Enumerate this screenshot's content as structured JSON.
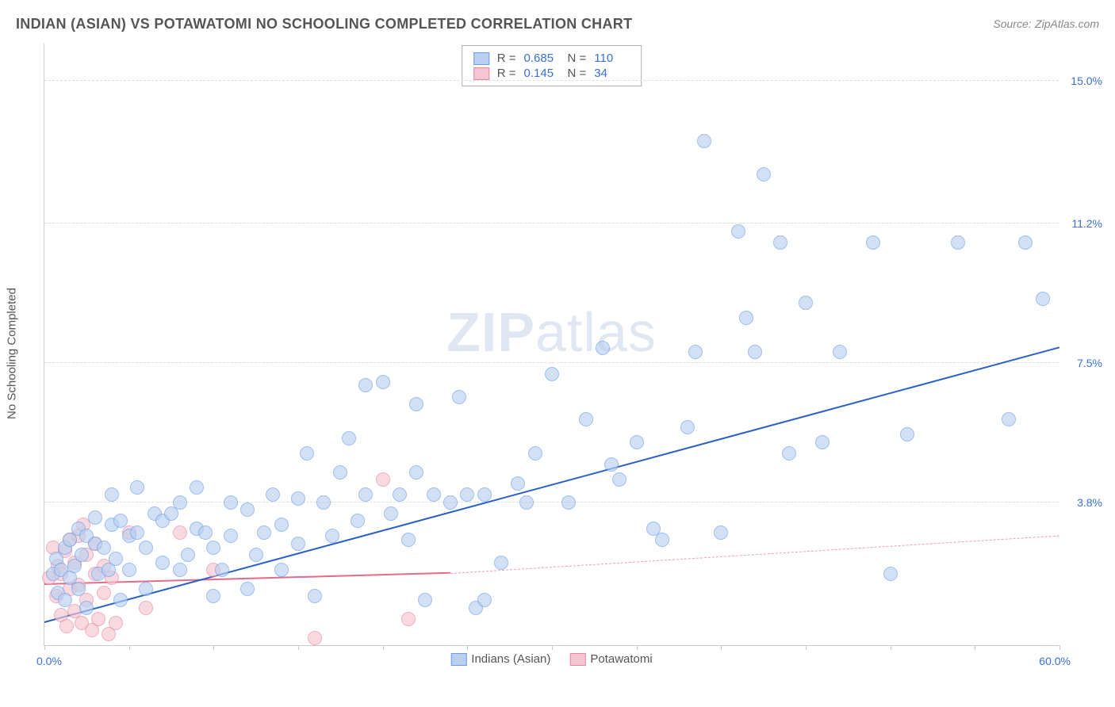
{
  "title": "INDIAN (ASIAN) VS POTAWATOMI NO SCHOOLING COMPLETED CORRELATION CHART",
  "source_label": "Source:",
  "source_value": "ZipAtlas.com",
  "y_axis_label": "No Schooling Completed",
  "watermark_bold": "ZIP",
  "watermark_light": "atlas",
  "chart": {
    "type": "scatter",
    "xlim": [
      0,
      60
    ],
    "ylim": [
      0,
      16
    ],
    "x_min_label": "0.0%",
    "x_max_label": "60.0%",
    "x_tick_step": 5,
    "y_gridlines": [
      3.8,
      7.5,
      11.2,
      15.0
    ],
    "y_tick_labels": [
      "3.8%",
      "7.5%",
      "11.2%",
      "15.0%"
    ],
    "background_color": "#ffffff",
    "grid_color": "#dddddd",
    "axis_color": "#cccccc",
    "tick_label_color": "#3a6fd8",
    "marker_radius": 9,
    "marker_stroke_width": 1
  },
  "series": {
    "blue": {
      "name": "Indians (Asian)",
      "R": "0.685",
      "N": "110",
      "fill": "#b9d0f0",
      "stroke": "#6a9de8",
      "fill_opacity": 0.65,
      "trend": {
        "x1": 0,
        "y1": 0.6,
        "x2": 60,
        "y2": 7.9,
        "color": "#2a5fc8",
        "width": 2.5,
        "dash": false
      },
      "points": [
        [
          0.5,
          1.9
        ],
        [
          0.7,
          2.3
        ],
        [
          0.8,
          1.4
        ],
        [
          1.0,
          2.0
        ],
        [
          1.2,
          2.6
        ],
        [
          1.2,
          1.2
        ],
        [
          1.5,
          2.8
        ],
        [
          1.5,
          1.8
        ],
        [
          1.8,
          2.1
        ],
        [
          2.0,
          3.1
        ],
        [
          2.0,
          1.5
        ],
        [
          2.2,
          2.4
        ],
        [
          2.5,
          2.9
        ],
        [
          2.5,
          1.0
        ],
        [
          3.0,
          2.7
        ],
        [
          3.0,
          3.4
        ],
        [
          3.2,
          1.9
        ],
        [
          3.5,
          2.6
        ],
        [
          3.8,
          2.0
        ],
        [
          4.0,
          3.2
        ],
        [
          4.0,
          4.0
        ],
        [
          4.2,
          2.3
        ],
        [
          4.5,
          3.3
        ],
        [
          4.5,
          1.2
        ],
        [
          5.0,
          2.9
        ],
        [
          5.0,
          2.0
        ],
        [
          5.5,
          3.0
        ],
        [
          5.5,
          4.2
        ],
        [
          6.0,
          2.6
        ],
        [
          6.0,
          1.5
        ],
        [
          6.5,
          3.5
        ],
        [
          7.0,
          2.2
        ],
        [
          7.0,
          3.3
        ],
        [
          7.5,
          3.5
        ],
        [
          8.0,
          2.0
        ],
        [
          8.0,
          3.8
        ],
        [
          8.5,
          2.4
        ],
        [
          9.0,
          3.1
        ],
        [
          9.0,
          4.2
        ],
        [
          9.5,
          3.0
        ],
        [
          10.0,
          2.6
        ],
        [
          10.0,
          1.3
        ],
        [
          10.5,
          2.0
        ],
        [
          11.0,
          3.8
        ],
        [
          11.0,
          2.9
        ],
        [
          12.0,
          3.6
        ],
        [
          12.0,
          1.5
        ],
        [
          12.5,
          2.4
        ],
        [
          13.0,
          3.0
        ],
        [
          13.5,
          4.0
        ],
        [
          14.0,
          2.0
        ],
        [
          14.0,
          3.2
        ],
        [
          15.0,
          2.7
        ],
        [
          15.0,
          3.9
        ],
        [
          15.5,
          5.1
        ],
        [
          16.0,
          1.3
        ],
        [
          16.5,
          3.8
        ],
        [
          17.0,
          2.9
        ],
        [
          17.5,
          4.6
        ],
        [
          18.0,
          5.5
        ],
        [
          18.5,
          3.3
        ],
        [
          19.0,
          6.9
        ],
        [
          19.0,
          4.0
        ],
        [
          20.0,
          7.0
        ],
        [
          20.5,
          3.5
        ],
        [
          21.0,
          4.0
        ],
        [
          21.5,
          2.8
        ],
        [
          22.0,
          4.6
        ],
        [
          22.0,
          6.4
        ],
        [
          22.5,
          1.2
        ],
        [
          23.0,
          4.0
        ],
        [
          24.0,
          3.8
        ],
        [
          24.5,
          6.6
        ],
        [
          25.0,
          4.0
        ],
        [
          25.5,
          1.0
        ],
        [
          26.0,
          4.0
        ],
        [
          26.0,
          1.2
        ],
        [
          27.0,
          2.2
        ],
        [
          28.0,
          4.3
        ],
        [
          28.5,
          3.8
        ],
        [
          29.0,
          5.1
        ],
        [
          30.0,
          7.2
        ],
        [
          31.0,
          3.8
        ],
        [
          32.0,
          6.0
        ],
        [
          33.0,
          7.9
        ],
        [
          33.5,
          4.8
        ],
        [
          34.0,
          4.4
        ],
        [
          35.0,
          5.4
        ],
        [
          36.0,
          3.1
        ],
        [
          36.5,
          2.8
        ],
        [
          38.0,
          5.8
        ],
        [
          38.5,
          7.8
        ],
        [
          39.0,
          13.4
        ],
        [
          40.0,
          3.0
        ],
        [
          41.0,
          11.0
        ],
        [
          41.5,
          8.7
        ],
        [
          42.0,
          7.8
        ],
        [
          42.5,
          12.5
        ],
        [
          43.5,
          10.7
        ],
        [
          44.0,
          5.1
        ],
        [
          45.0,
          9.1
        ],
        [
          46.0,
          5.4
        ],
        [
          47.0,
          7.8
        ],
        [
          49.0,
          10.7
        ],
        [
          50.0,
          1.9
        ],
        [
          51.0,
          5.6
        ],
        [
          54.0,
          10.7
        ],
        [
          58.0,
          10.7
        ],
        [
          59.0,
          9.2
        ],
        [
          57.0,
          6.0
        ]
      ]
    },
    "pink": {
      "name": "Potawatomi",
      "R": "0.145",
      "N": "34",
      "fill": "#f7c5d1",
      "stroke": "#e887a0",
      "fill_opacity": 0.65,
      "trend_solid": {
        "x1": 0,
        "y1": 1.6,
        "x2": 24,
        "y2": 1.9,
        "color": "#e56b8a",
        "width": 2.5
      },
      "trend_dash": {
        "x1": 24,
        "y1": 1.9,
        "x2": 60,
        "y2": 2.9,
        "color": "#eaa0b3",
        "width": 1.2
      },
      "points": [
        [
          0.3,
          1.8
        ],
        [
          0.5,
          2.6
        ],
        [
          0.7,
          1.3
        ],
        [
          0.8,
          2.1
        ],
        [
          1.0,
          0.8
        ],
        [
          1.0,
          1.9
        ],
        [
          1.2,
          2.5
        ],
        [
          1.3,
          0.5
        ],
        [
          1.5,
          1.5
        ],
        [
          1.5,
          2.8
        ],
        [
          1.8,
          0.9
        ],
        [
          1.8,
          2.2
        ],
        [
          2.0,
          1.6
        ],
        [
          2.0,
          2.9
        ],
        [
          2.2,
          0.6
        ],
        [
          2.3,
          3.2
        ],
        [
          2.5,
          1.2
        ],
        [
          2.5,
          2.4
        ],
        [
          2.8,
          0.4
        ],
        [
          3.0,
          1.9
        ],
        [
          3.0,
          2.7
        ],
        [
          3.2,
          0.7
        ],
        [
          3.5,
          1.4
        ],
        [
          3.5,
          2.1
        ],
        [
          3.8,
          0.3
        ],
        [
          4.0,
          1.8
        ],
        [
          4.2,
          0.6
        ],
        [
          5.0,
          3.0
        ],
        [
          6.0,
          1.0
        ],
        [
          8.0,
          3.0
        ],
        [
          10.0,
          2.0
        ],
        [
          16.0,
          0.2
        ],
        [
          20.0,
          4.4
        ],
        [
          21.5,
          0.7
        ]
      ]
    }
  },
  "legend_top": {
    "r_label": "R =",
    "n_label": "N ="
  },
  "legend_bottom": {
    "items": [
      "Indians (Asian)",
      "Potawatomi"
    ]
  }
}
